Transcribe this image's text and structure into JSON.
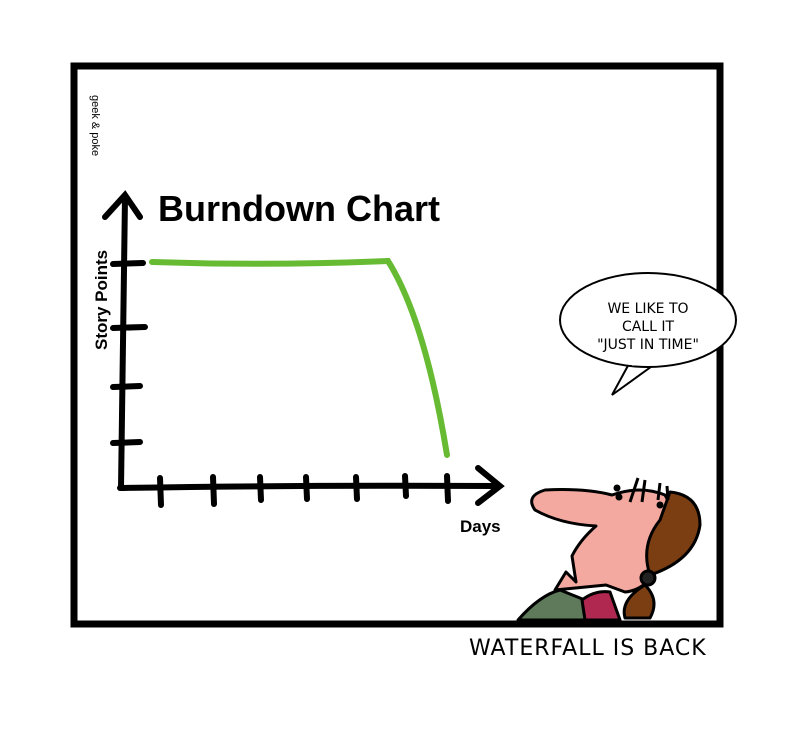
{
  "credit": "geek & poke",
  "chart": {
    "title": "Burndown Chart",
    "ylabel": "Story Points",
    "xlabel": "Days",
    "line_color": "#66bb33"
  },
  "speech_bubble": {
    "lines": [
      "WE LIKE TO",
      "CALL IT",
      "\"JUST IN TIME\""
    ]
  },
  "caption": "WATERFALL IS BACK",
  "colors": {
    "skin": "#f4a9a0",
    "hair": "#7a3e12",
    "shirt": "#5e7a5a",
    "scarf": "#b02850"
  }
}
